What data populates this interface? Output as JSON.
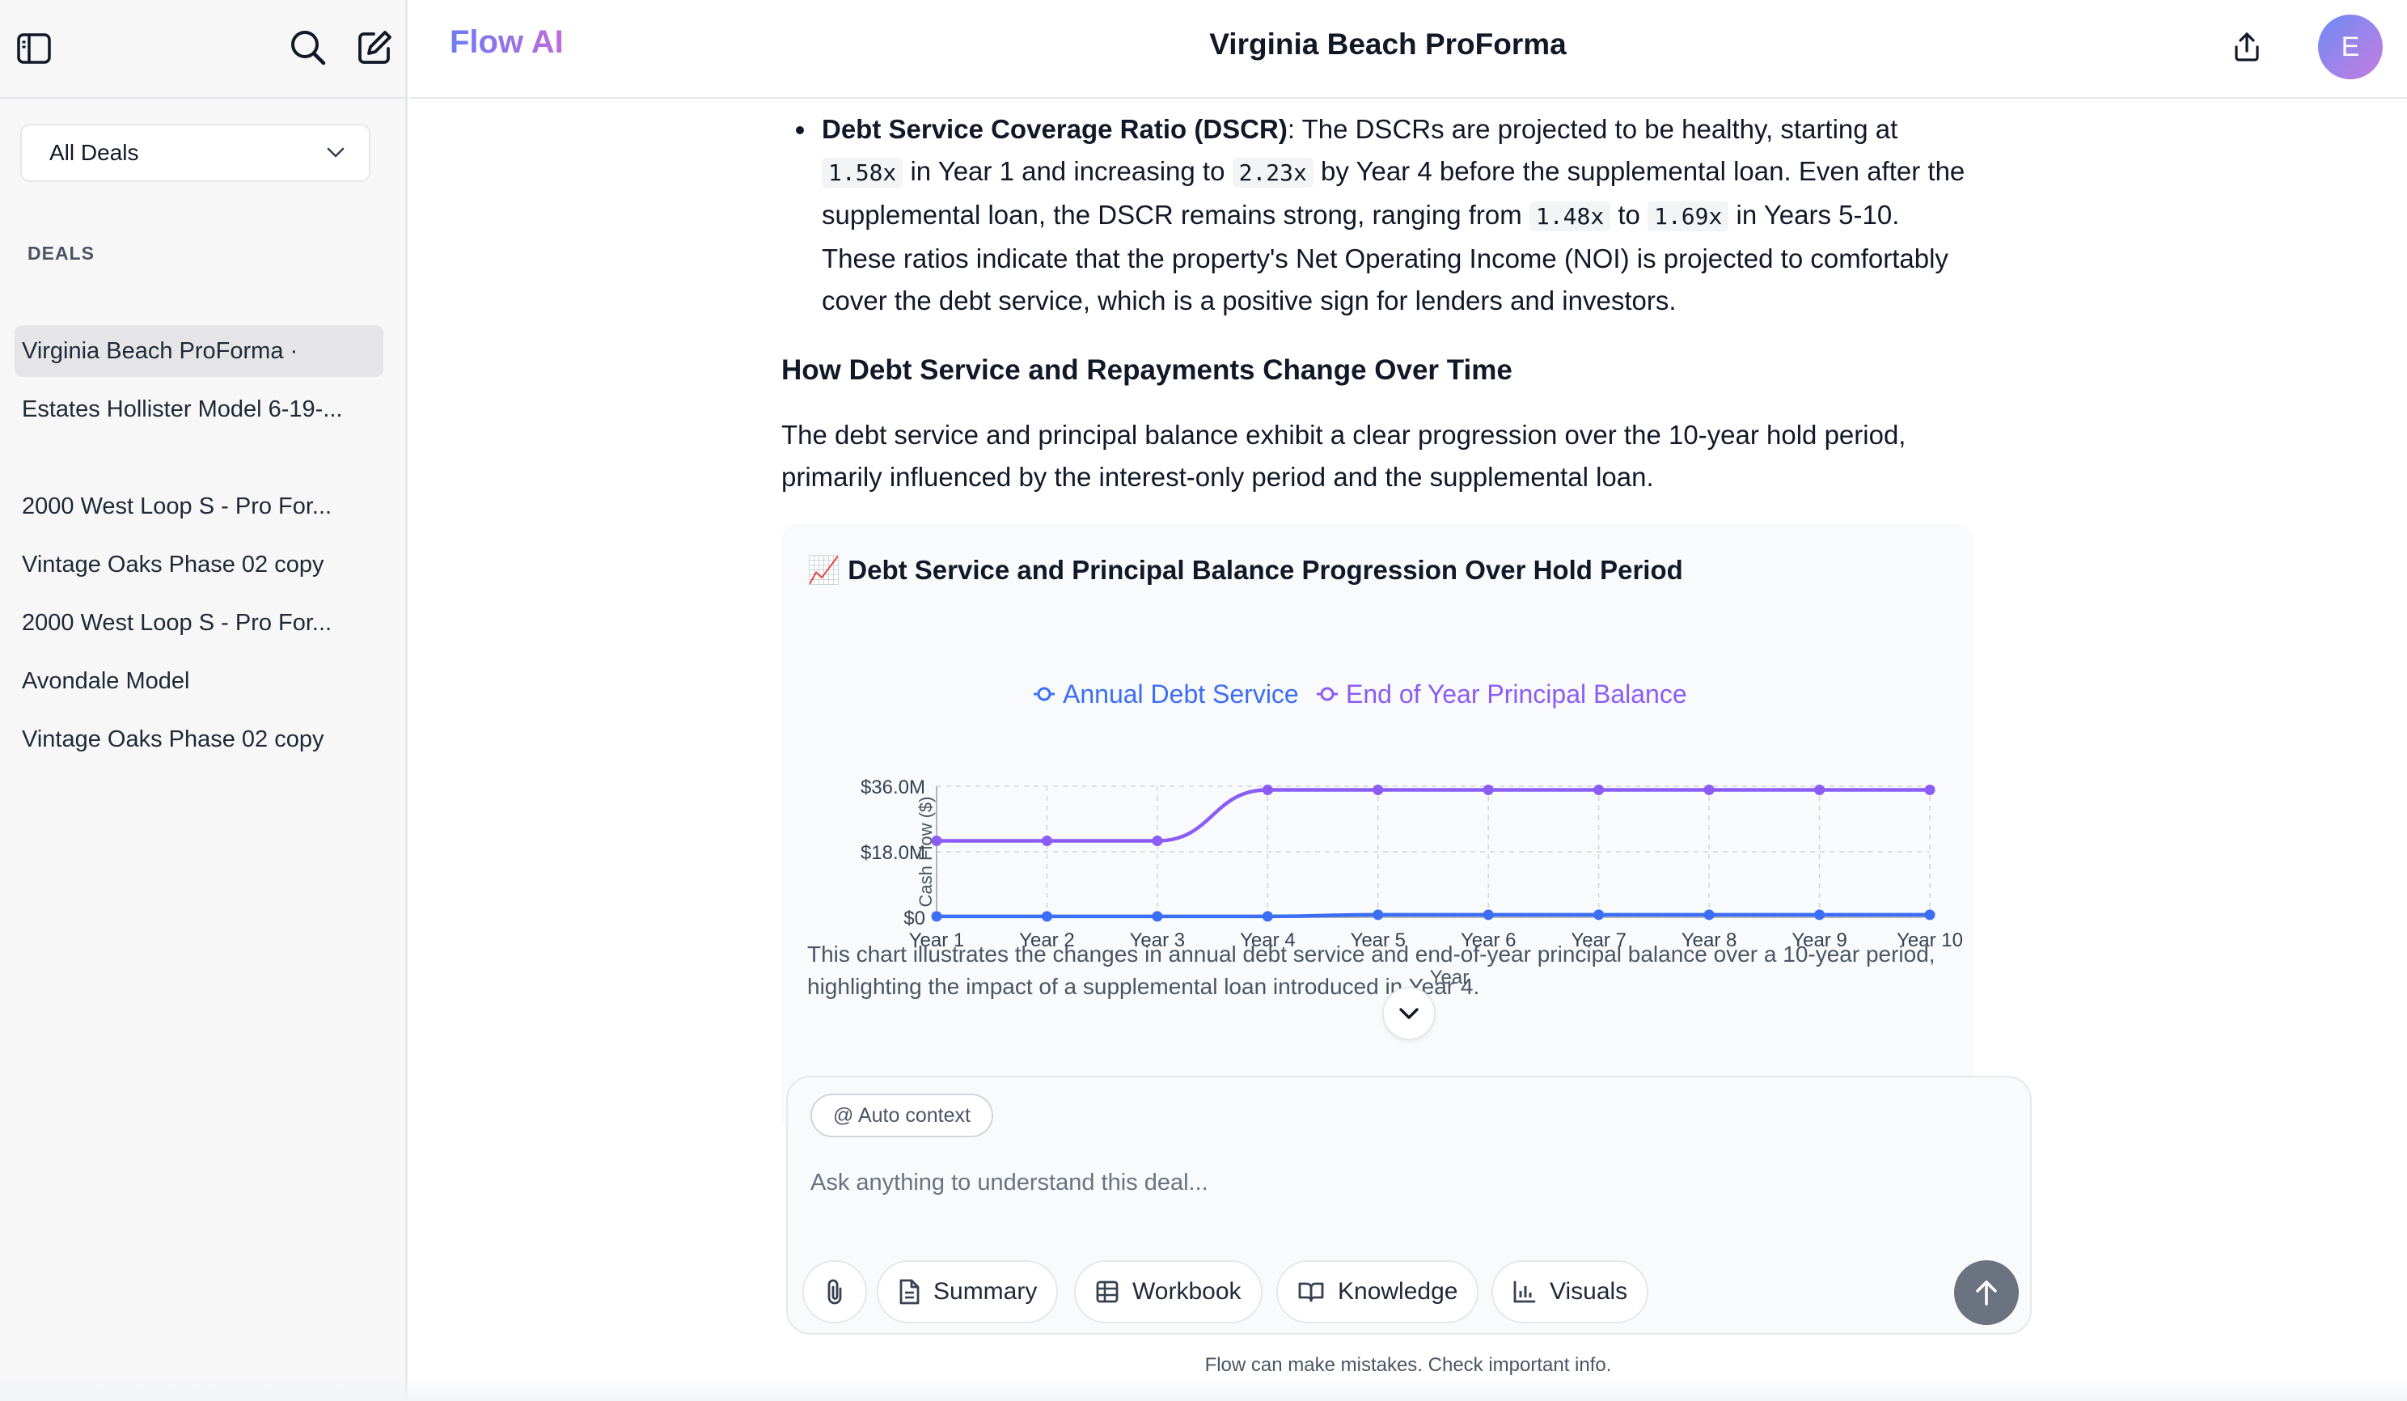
{
  "sidebar": {
    "filter": {
      "selected": "All Deals"
    },
    "section_label": "DEALS",
    "items": [
      {
        "label": "Virginia Beach ProForma ·",
        "active": true
      },
      {
        "label": "Estates Hollister Model 6-19-..."
      },
      {
        "label": "2000 West Loop S - Pro For..."
      },
      {
        "label": "Vintage Oaks Phase 02 copy"
      },
      {
        "label": "2000 West Loop S - Pro For..."
      },
      {
        "label": "Avondale Model"
      },
      {
        "label": "Vintage Oaks Phase 02 copy"
      }
    ]
  },
  "header": {
    "brand": "Flow AI",
    "title": "Virginia Beach ProForma",
    "avatar_initial": "E"
  },
  "content": {
    "bullet": {
      "term": "Debt Service Coverage Ratio (DSCR)",
      "t1": ": The DSCRs are projected to be healthy, starting at ",
      "c1": "1.58x",
      "t2": " in Year 1 and increasing to ",
      "c2": "2.23x",
      "t3": " by Year 4 before the supplemental loan. Even after the supplemental loan, the DSCR remains strong, ranging from ",
      "c3": "1.48x",
      "t4": " to ",
      "c4": "1.69x",
      "t5": " in Years 5-10. These ratios indicate that the property's Net Operating Income (NOI) is projected to comfortably cover the debt service, which is a positive sign for lenders and investors."
    },
    "heading": "How Debt Service and Repayments Change Over Time",
    "paragraph": "The debt service and principal balance exhibit a clear progression over the 10-year hold period, primarily influenced by the interest-only period and the supplemental loan.",
    "chart_card": {
      "title": "📈 Debt Service and Principal Balance Progression Over Hold Period",
      "description": "This chart illustrates the changes in annual debt service and end-of-year principal balance over a 10-year period, highlighting the impact of a supplemental loan introduced in Year 4."
    }
  },
  "chart_data": {
    "type": "line",
    "title": "Debt Service and Principal Balance Progression Over Hold Period",
    "xlabel": "Year",
    "ylabel": "Cash Flow ($)",
    "categories": [
      "Year 1",
      "Year 2",
      "Year 3",
      "Year 4",
      "Year 5",
      "Year 6",
      "Year 7",
      "Year 8",
      "Year 9",
      "Year 10"
    ],
    "ylim": [
      0,
      36000000
    ],
    "yticks": [
      {
        "value": 0,
        "label": "$0"
      },
      {
        "value": 18000000,
        "label": "$18.0M"
      },
      {
        "value": 36000000,
        "label": "$36.0M"
      }
    ],
    "series": [
      {
        "name": "Annual Debt Service",
        "color": "#3b6ef5",
        "values": [
          250000,
          250000,
          250000,
          250000,
          700000,
          700000,
          700000,
          700000,
          700000,
          700000
        ]
      },
      {
        "name": "End of Year Principal Balance",
        "color": "#8b5cf6",
        "values": [
          21000000,
          21000000,
          21000000,
          35000000,
          35000000,
          35000000,
          35000000,
          35000000,
          35000000,
          35000000
        ]
      }
    ],
    "grid": true,
    "legend": "top"
  },
  "composer": {
    "context_chip": "@ Auto context",
    "placeholder": "Ask anything to understand this deal...",
    "tools": [
      {
        "label": "Summary",
        "icon": "document-icon"
      },
      {
        "label": "Workbook",
        "icon": "table-icon"
      },
      {
        "label": "Knowledge",
        "icon": "book-icon"
      },
      {
        "label": "Visuals",
        "icon": "bar-chart-icon"
      }
    ]
  },
  "footer": {
    "disclaimer": "Flow can make mistakes. Check important info."
  }
}
